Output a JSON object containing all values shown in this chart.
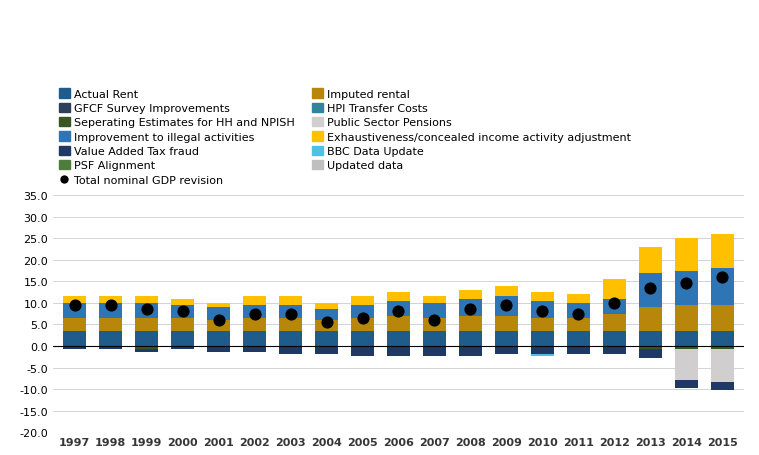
{
  "years": [
    1997,
    1998,
    1999,
    2000,
    2001,
    2002,
    2003,
    2004,
    2005,
    2006,
    2007,
    2008,
    2009,
    2010,
    2011,
    2012,
    2013,
    2014,
    2015
  ],
  "series_order": [
    "Actual Rent",
    "Imputed rental",
    "GFCF Survey Improvements",
    "HPI Transfer Costs",
    "Seperating Estimates for HH and NPISH",
    "Public Sector Pensions",
    "Improvement to illegal activities",
    "Exhaustiveness/concealed income activity adjustment",
    "Value Added Tax fraud",
    "BBC Data Update",
    "PSF Alignment",
    "Updated data"
  ],
  "series": {
    "Actual Rent": [
      3.5,
      3.5,
      3.5,
      3.5,
      3.5,
      3.5,
      3.5,
      3.5,
      3.5,
      3.5,
      3.5,
      3.5,
      3.5,
      3.5,
      3.5,
      3.5,
      3.5,
      3.5,
      3.5
    ],
    "Imputed rental": [
      3.0,
      3.0,
      3.0,
      3.0,
      2.5,
      3.0,
      3.0,
      2.5,
      3.0,
      3.5,
      3.0,
      3.5,
      3.5,
      3.0,
      3.0,
      4.0,
      5.5,
      6.0,
      6.0
    ],
    "GFCF Survey Improvements": [
      0.0,
      0.0,
      0.0,
      0.0,
      0.0,
      0.0,
      0.0,
      0.0,
      0.0,
      0.0,
      0.0,
      0.0,
      0.0,
      0.0,
      0.0,
      0.0,
      0.0,
      0.0,
      0.0
    ],
    "HPI Transfer Costs": [
      0.0,
      0.0,
      0.0,
      0.0,
      0.0,
      0.0,
      0.0,
      0.0,
      0.0,
      0.0,
      0.0,
      0.0,
      0.0,
      0.0,
      0.0,
      0.0,
      0.0,
      0.0,
      0.0
    ],
    "Seperating Estimates for HH and NPISH": [
      -0.3,
      -0.3,
      -0.8,
      -0.3,
      -0.3,
      -0.3,
      -0.3,
      -0.3,
      -0.3,
      -0.3,
      -0.3,
      -0.3,
      -0.3,
      -0.3,
      -0.3,
      -0.3,
      -0.8,
      -0.8,
      -0.8
    ],
    "Public Sector Pensions": [
      0.0,
      0.0,
      0.0,
      0.0,
      0.0,
      0.0,
      0.0,
      0.0,
      0.0,
      0.0,
      0.0,
      0.0,
      0.0,
      0.0,
      0.0,
      0.0,
      0.0,
      -7.0,
      -7.5
    ],
    "Improvement to illegal activities": [
      3.5,
      3.5,
      3.5,
      3.0,
      3.0,
      3.0,
      3.0,
      2.5,
      3.0,
      3.5,
      3.5,
      4.0,
      4.5,
      4.0,
      3.5,
      3.5,
      8.0,
      8.0,
      8.5
    ],
    "Exhaustiveness/concealed income activity adjustment": [
      1.5,
      1.5,
      1.5,
      1.5,
      1.0,
      2.0,
      2.0,
      1.5,
      2.0,
      2.0,
      1.5,
      2.0,
      2.5,
      2.0,
      2.0,
      4.5,
      6.0,
      7.5,
      8.0
    ],
    "Value Added Tax fraud": [
      -0.5,
      -0.5,
      -0.5,
      -0.5,
      -1.0,
      -1.0,
      -1.5,
      -1.5,
      -2.0,
      -2.0,
      -2.0,
      -2.0,
      -1.5,
      -1.5,
      -1.5,
      -1.5,
      -2.0,
      -2.0,
      -2.0
    ],
    "BBC Data Update": [
      0.0,
      0.0,
      0.0,
      0.0,
      0.0,
      0.0,
      0.0,
      0.0,
      0.0,
      0.0,
      0.0,
      0.0,
      0.0,
      -0.5,
      0.0,
      0.0,
      0.0,
      0.0,
      0.0
    ],
    "PSF Alignment": [
      0.0,
      0.0,
      0.0,
      0.0,
      0.0,
      0.0,
      0.0,
      0.0,
      0.0,
      0.0,
      0.0,
      0.0,
      0.0,
      0.0,
      0.0,
      0.0,
      0.0,
      0.0,
      0.0
    ],
    "Updated data": [
      0.0,
      0.0,
      0.0,
      0.0,
      0.0,
      0.0,
      0.0,
      0.0,
      0.0,
      0.0,
      0.0,
      0.0,
      0.0,
      0.0,
      0.0,
      0.0,
      0.0,
      0.0,
      0.0
    ]
  },
  "gdp_revision": [
    9.5,
    9.5,
    8.5,
    8.0,
    6.0,
    7.5,
    7.5,
    5.5,
    6.5,
    8.0,
    6.0,
    8.5,
    9.5,
    8.0,
    7.5,
    10.0,
    13.5,
    14.5,
    16.0
  ],
  "colors": {
    "Actual Rent": "#1f5c8b",
    "Imputed rental": "#b8860b",
    "GFCF Survey Improvements": "#2e3f5c",
    "HPI Transfer Costs": "#31849b",
    "Seperating Estimates for HH and NPISH": "#375623",
    "Public Sector Pensions": "#d0cece",
    "Improvement to illegal activities": "#2e75b6",
    "Exhaustiveness/concealed income activity adjustment": "#ffc000",
    "Value Added Tax fraud": "#1f3864",
    "BBC Data Update": "#4fc1e9",
    "PSF Alignment": "#4e7c3a",
    "Updated data": "#bfbfbf"
  },
  "ylim": [
    -20,
    35
  ],
  "yticks": [
    -20,
    -15,
    -10,
    -5,
    0,
    5,
    10,
    15,
    20,
    25,
    30,
    35
  ],
  "legend_items_col1": [
    "Actual Rent",
    "GFCF Survey Improvements",
    "Seperating Estimates for HH and NPISH",
    "Improvement to illegal activities",
    "Value Added Tax fraud",
    "PSF Alignment",
    "Total nominal GDP revision"
  ],
  "legend_items_col2": [
    "Imputed rental",
    "HPI Transfer Costs",
    "Public Sector Pensions",
    "Exhaustiveness/concealed income activity adjustment",
    "BBC Data Update",
    "Updated data"
  ],
  "axis_fontsize": 8,
  "legend_fontsize": 8
}
